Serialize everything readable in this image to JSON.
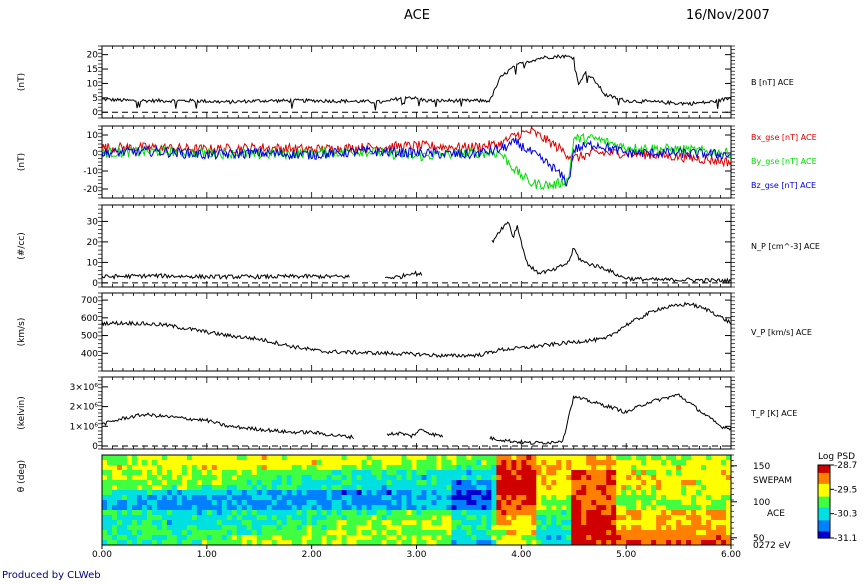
{
  "header": {
    "title": "ACE",
    "date": "16/Nov/2007"
  },
  "footer": {
    "credit": "Produced by CLWeb"
  },
  "chart_data": [
    {
      "type": "line",
      "panel": "B",
      "ylabel": "(nT)",
      "ylim": [
        -2,
        23
      ],
      "yticks": [
        0,
        5,
        10,
        15,
        20
      ],
      "dashed_zero": true,
      "series": [
        {
          "name": "B [nT] ACE",
          "color": "#000000",
          "x": [
            0.0,
            0.3,
            0.6,
            0.9,
            1.2,
            1.5,
            1.8,
            2.1,
            2.4,
            2.7,
            2.9,
            3.1,
            3.4,
            3.7,
            3.75,
            3.8,
            3.9,
            4.0,
            4.2,
            4.4,
            4.5,
            4.55,
            4.6,
            4.7,
            4.8,
            5.0,
            5.3,
            5.6,
            5.8,
            6.0
          ],
          "y": [
            4.5,
            4.0,
            4.0,
            4.0,
            3.5,
            4.0,
            4.0,
            4.0,
            3.8,
            3.5,
            5.5,
            4.0,
            4.0,
            4.0,
            8,
            12,
            15,
            17,
            19,
            19.5,
            19,
            9,
            14,
            11,
            6,
            4,
            3.5,
            3.0,
            3.5,
            5
          ]
        }
      ]
    },
    {
      "type": "line",
      "panel": "B_gse",
      "ylabel": "(nT)",
      "ylim": [
        -25,
        15
      ],
      "yticks": [
        -20,
        -10,
        0,
        10
      ],
      "series": [
        {
          "name": "Bx_gse [nT] ACE",
          "color": "#e00000",
          "x": [
            0.0,
            0.5,
            1.0,
            1.5,
            2.0,
            2.5,
            3.0,
            3.5,
            3.8,
            3.95,
            4.1,
            4.3,
            4.5,
            4.7,
            5.0,
            5.5,
            6.0
          ],
          "y": [
            3,
            3,
            2,
            3,
            2,
            3,
            4,
            3,
            5,
            10,
            12,
            5,
            -3,
            0,
            0,
            -2,
            -5
          ]
        },
        {
          "name": "By_gse [nT] ACE",
          "color": "#00dd00",
          "x": [
            0.0,
            0.5,
            1.0,
            1.5,
            2.0,
            2.5,
            3.0,
            3.5,
            3.8,
            3.95,
            4.1,
            4.3,
            4.45,
            4.5,
            4.7,
            5.0,
            5.5,
            6.0
          ],
          "y": [
            0,
            1,
            0,
            -1,
            0,
            1,
            -2,
            0,
            0,
            -10,
            -17,
            -18,
            -15,
            8,
            8,
            3,
            2,
            0
          ]
        },
        {
          "name": "Bz_gse [nT] ACE",
          "color": "#0000dd",
          "x": [
            0.0,
            0.5,
            1.0,
            1.5,
            2.0,
            2.5,
            3.0,
            3.5,
            3.8,
            3.95,
            4.1,
            4.3,
            4.45,
            4.5,
            4.7,
            5.0,
            5.5,
            6.0
          ],
          "y": [
            0,
            1,
            -1,
            0,
            -1,
            1,
            0,
            -1,
            2,
            6,
            0,
            -8,
            -17,
            2,
            5,
            0,
            0,
            -1
          ]
        }
      ]
    },
    {
      "type": "line",
      "panel": "N_P",
      "ylabel": "(#/cc)",
      "ylim": [
        -2,
        38
      ],
      "yticks": [
        0,
        10,
        20,
        30
      ],
      "dashed_zero": true,
      "series": [
        {
          "name": "N_P [cm^-3] ACE",
          "color": "#000000",
          "segments": [
            {
              "x": [
                0.0,
                0.5,
                1.0,
                1.5,
                2.0,
                2.36
              ],
              "y": [
                3,
                3.5,
                3,
                3,
                3.2,
                3
              ]
            },
            {
              "x": [
                2.7,
                2.85,
                2.95,
                3.05
              ],
              "y": [
                2.5,
                3,
                5,
                4
              ]
            },
            {
              "x": [
                3.72,
                3.8,
                3.88,
                3.92,
                3.96,
                4.0,
                4.05,
                4.15,
                4.3,
                4.45,
                4.5,
                4.55,
                4.6,
                4.8,
                4.95,
                5.05,
                5.3,
                5.6,
                6.0
              ],
              "y": [
                20,
                26,
                30,
                22,
                28,
                20,
                10,
                5,
                6,
                10,
                17,
                12,
                10,
                7,
                3,
                2,
                1.5,
                1.5,
                1
              ]
            }
          ]
        }
      ]
    },
    {
      "type": "line",
      "panel": "V_P",
      "ylabel": "(km/s)",
      "ylim": [
        300,
        740
      ],
      "yticks": [
        400,
        500,
        600,
        700
      ],
      "series": [
        {
          "name": "V_P [km/s] ACE",
          "color": "#000000",
          "x": [
            0.0,
            0.3,
            0.6,
            0.9,
            1.2,
            1.5,
            1.8,
            2.1,
            2.4,
            2.7,
            3.0,
            3.3,
            3.6,
            3.8,
            4.0,
            4.3,
            4.6,
            4.8,
            5.0,
            5.3,
            5.6,
            5.8,
            6.0
          ],
          "y": [
            570,
            570,
            560,
            530,
            500,
            480,
            440,
            410,
            405,
            400,
            395,
            385,
            390,
            420,
            430,
            450,
            470,
            480,
            560,
            650,
            680,
            640,
            570
          ]
        }
      ]
    },
    {
      "type": "line",
      "panel": "T_P",
      "ylabel": "(kelvin)",
      "ylim": [
        -150000,
        3500000
      ],
      "yticks": [
        0,
        1000000,
        2000000,
        3000000
      ],
      "yticklabels": [
        "0",
        "1×10⁶",
        "2×10⁶",
        "3×10⁶"
      ],
      "dashed_zero": true,
      "series": [
        {
          "name": "T_P [K] ACE",
          "color": "#000000",
          "segments": [
            {
              "x": [
                0.0,
                0.2,
                0.4,
                0.6,
                0.8,
                1.0,
                1.2,
                1.4,
                1.6,
                1.8,
                2.0,
                2.2,
                2.4
              ],
              "y": [
                1100000,
                1400000,
                1600000,
                1500000,
                1400000,
                1300000,
                1000000,
                900000,
                800000,
                700000,
                700000,
                550000,
                450000
              ]
            },
            {
              "x": [
                2.72,
                2.85,
                2.95,
                3.05,
                3.15,
                3.25
              ],
              "y": [
                600000,
                650000,
                500000,
                850000,
                600000,
                500000
              ]
            },
            {
              "x": [
                3.7,
                3.9,
                4.1,
                4.3,
                4.4,
                4.45,
                4.5,
                4.7,
                4.9,
                5.0,
                5.2,
                5.5,
                5.7,
                5.9,
                6.0
              ],
              "y": [
                400000,
                250000,
                150000,
                200000,
                300000,
                1500000,
                2500000,
                2200000,
                1900000,
                1700000,
                2200000,
                2600000,
                1800000,
                1000000,
                900000
              ]
            }
          ]
        }
      ]
    },
    {
      "type": "heatmap",
      "panel": "SWEPAM",
      "ylabel": "θ (deg)",
      "ylim": [
        40,
        165
      ],
      "yticks": [
        50,
        100,
        150
      ],
      "labels": [
        "SWEPAM",
        "ACE",
        "0272 eV"
      ],
      "colorbar": {
        "title": "Log PSD",
        "ticks": [
          "-28.7",
          "-29.5",
          "-30.3",
          "-31.1"
        ],
        "range": [
          -31.1,
          -28.7
        ]
      },
      "colormap": [
        "#0000d0",
        "#0080ff",
        "#00e0e0",
        "#40ff40",
        "#ffff00",
        "#ff8000",
        "#d00000"
      ]
    }
  ],
  "xaxis": {
    "range": [
      0,
      6
    ],
    "ticklabels": [
      "0.00",
      "1.00",
      "2.00",
      "3.00",
      "4.00",
      "5.00",
      "6.00"
    ]
  }
}
